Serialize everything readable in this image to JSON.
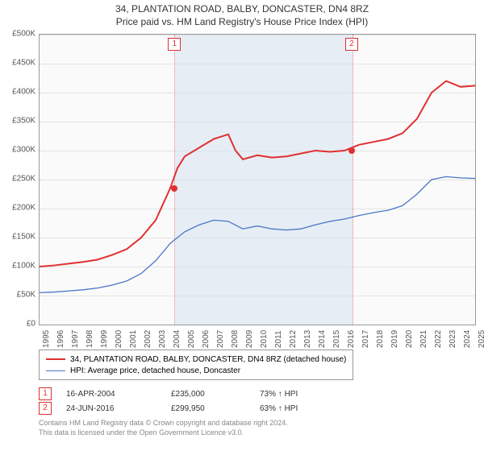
{
  "title": "34, PLANTATION ROAD, BALBY, DONCASTER, DN4 8RZ",
  "subtitle": "Price paid vs. HM Land Registry's House Price Index (HPI)",
  "chart": {
    "type": "line",
    "background_color": "#fafafa",
    "grid_color": "#cccccc",
    "shade_color": "#d6e4f0",
    "marker_border": "#e03030",
    "ylim": [
      0,
      500000
    ],
    "ytick_step": 50000,
    "y_ticks": [
      "£0",
      "£50K",
      "£100K",
      "£150K",
      "£200K",
      "£250K",
      "£300K",
      "£350K",
      "£400K",
      "£450K",
      "£500K"
    ],
    "x_years": [
      1995,
      1996,
      1997,
      1998,
      1999,
      2000,
      2001,
      2002,
      2003,
      2004,
      2005,
      2006,
      2007,
      2008,
      2009,
      2010,
      2011,
      2012,
      2013,
      2014,
      2015,
      2016,
      2017,
      2018,
      2019,
      2020,
      2021,
      2022,
      2023,
      2024,
      2025
    ],
    "series": [
      {
        "name": "34, PLANTATION ROAD, BALBY, DONCASTER, DN4 8RZ (detached house)",
        "color": "#e03030",
        "line_width": 2,
        "values": [
          [
            1995,
            100000
          ],
          [
            1996,
            102000
          ],
          [
            1997,
            105000
          ],
          [
            1998,
            108000
          ],
          [
            1999,
            112000
          ],
          [
            2000,
            120000
          ],
          [
            2001,
            130000
          ],
          [
            2002,
            150000
          ],
          [
            2003,
            180000
          ],
          [
            2004,
            235000
          ],
          [
            2004.5,
            270000
          ],
          [
            2005,
            290000
          ],
          [
            2006,
            305000
          ],
          [
            2007,
            320000
          ],
          [
            2008,
            328000
          ],
          [
            2008.5,
            300000
          ],
          [
            2009,
            285000
          ],
          [
            2010,
            292000
          ],
          [
            2011,
            288000
          ],
          [
            2012,
            290000
          ],
          [
            2013,
            295000
          ],
          [
            2014,
            300000
          ],
          [
            2015,
            298000
          ],
          [
            2016,
            300000
          ],
          [
            2016.5,
            305000
          ],
          [
            2017,
            310000
          ],
          [
            2018,
            315000
          ],
          [
            2019,
            320000
          ],
          [
            2020,
            330000
          ],
          [
            2021,
            355000
          ],
          [
            2022,
            400000
          ],
          [
            2023,
            420000
          ],
          [
            2024,
            410000
          ],
          [
            2025,
            412000
          ]
        ]
      },
      {
        "name": "HPI: Average price, detached house, Doncaster",
        "color": "#4a76c7",
        "line_width": 1.3,
        "values": [
          [
            1995,
            55000
          ],
          [
            1996,
            56000
          ],
          [
            1997,
            58000
          ],
          [
            1998,
            60000
          ],
          [
            1999,
            63000
          ],
          [
            2000,
            68000
          ],
          [
            2001,
            75000
          ],
          [
            2002,
            88000
          ],
          [
            2003,
            110000
          ],
          [
            2004,
            140000
          ],
          [
            2005,
            160000
          ],
          [
            2006,
            172000
          ],
          [
            2007,
            180000
          ],
          [
            2008,
            178000
          ],
          [
            2009,
            165000
          ],
          [
            2010,
            170000
          ],
          [
            2011,
            165000
          ],
          [
            2012,
            163000
          ],
          [
            2013,
            165000
          ],
          [
            2014,
            172000
          ],
          [
            2015,
            178000
          ],
          [
            2016,
            182000
          ],
          [
            2017,
            188000
          ],
          [
            2018,
            193000
          ],
          [
            2019,
            197000
          ],
          [
            2020,
            205000
          ],
          [
            2021,
            225000
          ],
          [
            2022,
            250000
          ],
          [
            2023,
            255000
          ],
          [
            2024,
            253000
          ],
          [
            2025,
            252000
          ]
        ]
      }
    ],
    "sales": [
      {
        "marker": "1",
        "year": 2004.3,
        "price": 235000
      },
      {
        "marker": "2",
        "year": 2016.5,
        "price": 299950
      }
    ]
  },
  "legend": {
    "row1": "34, PLANTATION ROAD, BALBY, DONCASTER, DN4 8RZ (detached house)",
    "row2": "HPI: Average price, detached house, Doncaster"
  },
  "sale_table": {
    "rows": [
      {
        "marker": "1",
        "date": "16-APR-2004",
        "price": "£235,000",
        "hpi": "73% ↑ HPI"
      },
      {
        "marker": "2",
        "date": "24-JUN-2016",
        "price": "£299,950",
        "hpi": "63% ↑ HPI"
      }
    ]
  },
  "footer": {
    "line1": "Contains HM Land Registry data © Crown copyright and database right 2024.",
    "line2": "This data is licensed under the Open Government Licence v3.0."
  }
}
